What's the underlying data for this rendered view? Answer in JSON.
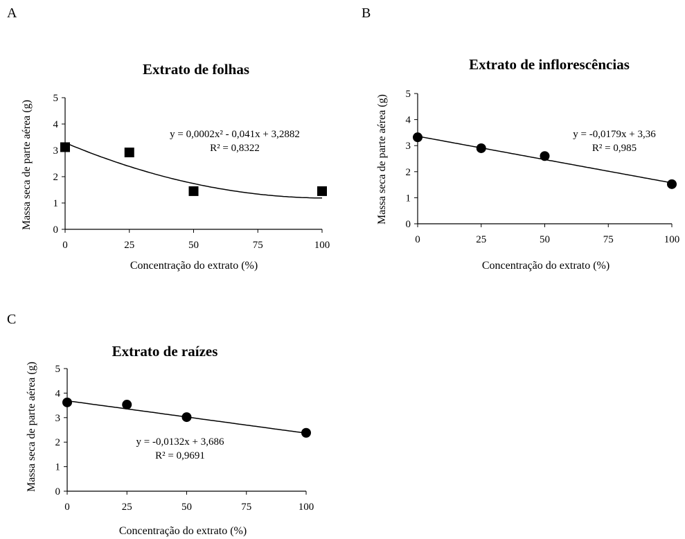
{
  "panels": [
    {
      "letter": "A"
    },
    {
      "letter": "B"
    },
    {
      "letter": "C"
    }
  ],
  "chart_data": [
    {
      "type": "scatter",
      "marker": "square",
      "title": "Extrato de folhas",
      "xlabel": "Concentração do extrato (%)",
      "ylabel": "Massa seca de parte aérea (g)",
      "xlim": [
        0,
        100
      ],
      "ylim": [
        0,
        5
      ],
      "xticks": [
        0,
        25,
        50,
        75,
        100
      ],
      "yticks": [
        0,
        1,
        2,
        3,
        4,
        5
      ],
      "x": [
        0,
        25,
        50,
        100
      ],
      "y": [
        3.12,
        2.92,
        1.45,
        1.45
      ],
      "trendline": {
        "kind": "polynomial",
        "coefficients": [
          0.0002,
          -0.041,
          3.2882
        ]
      },
      "equation": "y = 0,0002x² - 0,041x + 3,2882",
      "r2": "R² = 0,8322",
      "grid": false
    },
    {
      "type": "scatter",
      "marker": "circle",
      "title": "Extrato de inflorescências",
      "xlabel": "Concentração do extrato (%)",
      "ylabel": "Massa seca de parte aérea (g)",
      "xlim": [
        0,
        100
      ],
      "ylim": [
        0,
        5
      ],
      "xticks": [
        0,
        25,
        50,
        75,
        100
      ],
      "yticks": [
        0,
        1,
        2,
        3,
        4,
        5
      ],
      "x": [
        0,
        25,
        50,
        100
      ],
      "y": [
        3.32,
        2.9,
        2.6,
        1.52
      ],
      "trendline": {
        "kind": "linear",
        "coefficients": [
          -0.0179,
          3.36
        ]
      },
      "equation": "y = -0,0179x + 3,36",
      "r2": "R² = 0,985",
      "grid": false
    },
    {
      "type": "scatter",
      "marker": "circle",
      "title": "Extrato de raízes",
      "xlabel": "Concentração do extrato (%)",
      "ylabel": "Massa seca de parte aérea (g)",
      "xlim": [
        0,
        100
      ],
      "ylim": [
        0,
        5
      ],
      "xticks": [
        0,
        25,
        50,
        75,
        100
      ],
      "yticks": [
        0,
        1,
        2,
        3,
        4,
        5
      ],
      "x": [
        0,
        25,
        50,
        100
      ],
      "y": [
        3.62,
        3.53,
        3.02,
        2.38
      ],
      "trendline": {
        "kind": "linear",
        "coefficients": [
          -0.0132,
          3.686
        ]
      },
      "equation": "y = -0,0132x + 3,686",
      "r2": "R² = 0,9691",
      "grid": false
    }
  ]
}
